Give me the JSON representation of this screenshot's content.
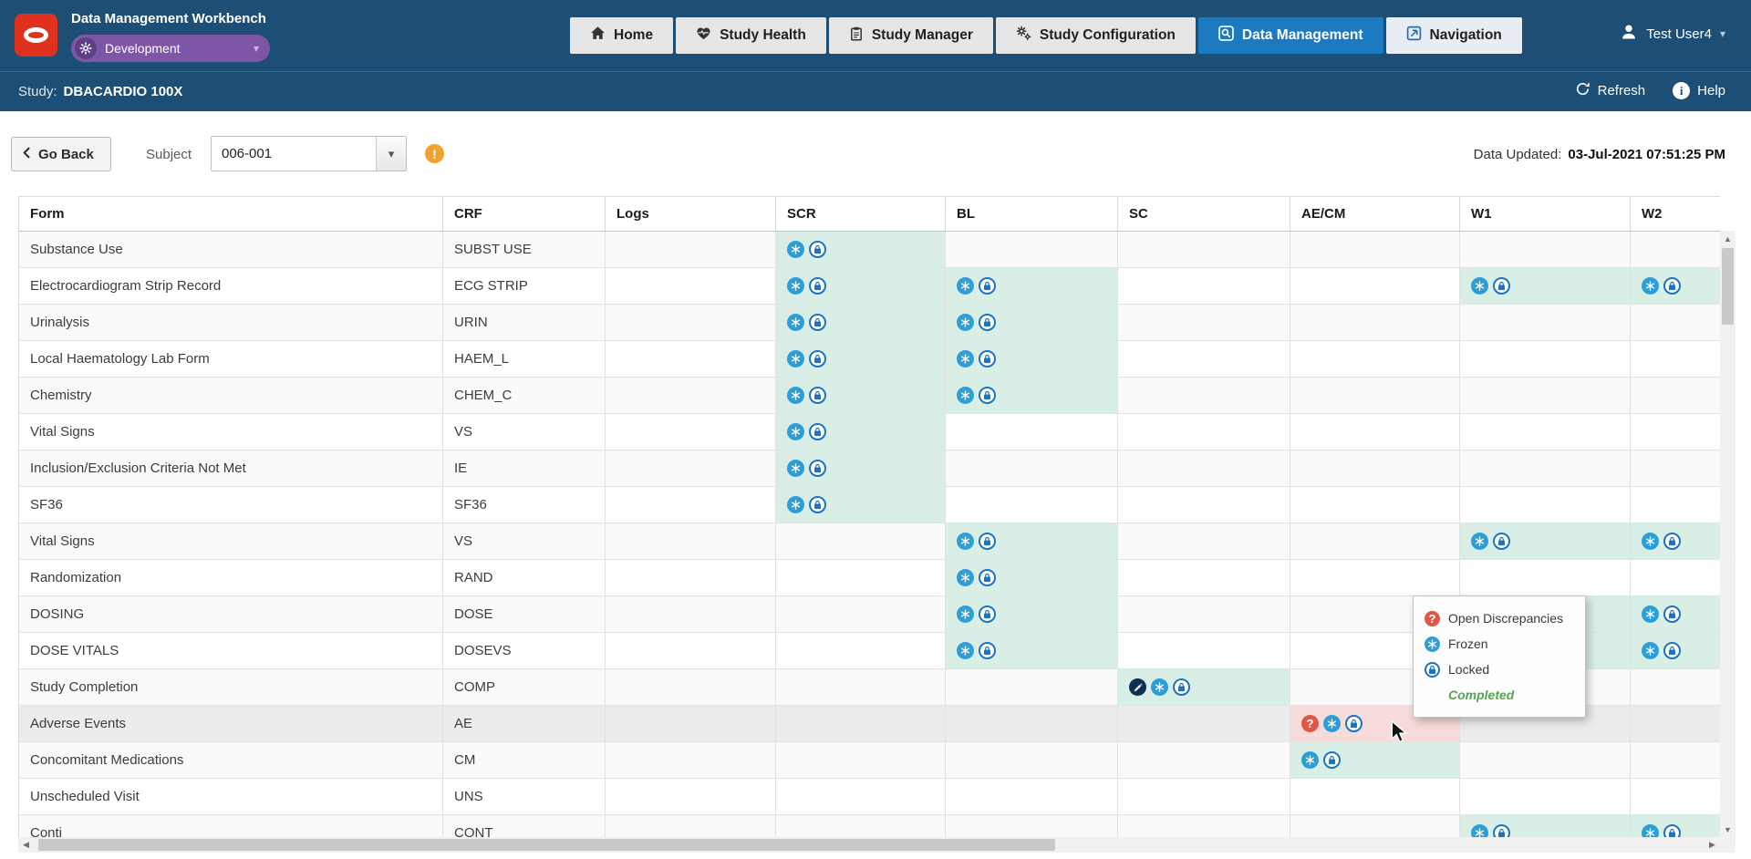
{
  "header": {
    "app_title": "Data Management Workbench",
    "environment": "Development",
    "tabs": [
      {
        "label": "Home",
        "icon": "home",
        "active": false
      },
      {
        "label": "Study Health",
        "icon": "heart-pulse",
        "active": false
      },
      {
        "label": "Study Manager",
        "icon": "clipboard",
        "active": false
      },
      {
        "label": "Study Configuration",
        "icon": "gears",
        "active": false
      },
      {
        "label": "Data Management",
        "icon": "data-search",
        "active": true
      },
      {
        "label": "Navigation",
        "icon": "navigation",
        "active": false,
        "variant": "nav"
      }
    ],
    "user": "Test User4"
  },
  "study_bar": {
    "label": "Study:",
    "study_name": "DBACARDIO 100X",
    "refresh_label": "Refresh",
    "help_label": "Help"
  },
  "toolbar": {
    "go_back_label": "Go Back",
    "subject_label": "Subject",
    "subject_value": "006-001",
    "data_updated_label": "Data Updated:",
    "data_updated_value": "03-Jul-2021 07:51:25 PM"
  },
  "table": {
    "columns": [
      "Form",
      "CRF",
      "Logs",
      "SCR",
      "BL",
      "SC",
      "AE/CM",
      "W1",
      "W2"
    ],
    "visit_columns": [
      "SCR",
      "BL",
      "SC",
      "AE/CM",
      "W1",
      "W2"
    ],
    "rows": [
      {
        "form": "Substance Use",
        "crf": "SUBST USE",
        "status": {
          "SCR": "frozen_locked"
        }
      },
      {
        "form": "Electrocardiogram Strip Record",
        "crf": "ECG STRIP",
        "status": {
          "SCR": "frozen_locked",
          "BL": "frozen_locked",
          "W1": "frozen_locked",
          "W2": "frozen_locked"
        }
      },
      {
        "form": "Urinalysis",
        "crf": "URIN",
        "status": {
          "SCR": "frozen_locked",
          "BL": "frozen_locked"
        }
      },
      {
        "form": "Local Haematology Lab Form",
        "crf": "HAEM_L",
        "status": {
          "SCR": "frozen_locked",
          "BL": "frozen_locked"
        }
      },
      {
        "form": "Chemistry",
        "crf": "CHEM_C",
        "status": {
          "SCR": "frozen_locked",
          "BL": "frozen_locked"
        }
      },
      {
        "form": "Vital Signs",
        "crf": "VS",
        "status": {
          "SCR": "frozen_locked"
        }
      },
      {
        "form": "Inclusion/Exclusion Criteria Not Met",
        "crf": "IE",
        "status": {
          "SCR": "frozen_locked"
        }
      },
      {
        "form": "SF36",
        "crf": "SF36",
        "status": {
          "SCR": "frozen_locked"
        }
      },
      {
        "form": "Vital Signs",
        "crf": "VS",
        "status": {
          "BL": "frozen_locked",
          "W1": "frozen_locked",
          "W2": "frozen_locked"
        }
      },
      {
        "form": "Randomization",
        "crf": "RAND",
        "status": {
          "BL": "frozen_locked"
        }
      },
      {
        "form": "DOSING",
        "crf": "DOSE",
        "status": {
          "BL": "frozen_locked",
          "W1": "frozen_locked",
          "W2": "frozen_locked"
        }
      },
      {
        "form": "DOSE VITALS",
        "crf": "DOSEVS",
        "status": {
          "BL": "frozen_locked",
          "W1": "frozen_locked",
          "W2": "frozen_locked"
        }
      },
      {
        "form": "Study Completion",
        "crf": "COMP",
        "status": {
          "SC": "entry_frozen_locked"
        }
      },
      {
        "form": "Adverse Events",
        "crf": "AE",
        "status": {
          "AE/CM": "disc_frozen_locked"
        },
        "hovered": true
      },
      {
        "form": "Concomitant Medications",
        "crf": "CM",
        "status": {
          "AE/CM": "frozen_locked"
        }
      },
      {
        "form": "Unscheduled Visit",
        "crf": "UNS",
        "status": {}
      },
      {
        "form": "Conti",
        "crf": "CONT",
        "status": {
          "W1": "frozen_locked",
          "W2": "frozen_locked"
        }
      }
    ]
  },
  "legend": {
    "items": [
      {
        "icon": "discrepancy",
        "label": "Open Discrepancies"
      },
      {
        "icon": "frozen",
        "label": "Frozen"
      },
      {
        "icon": "locked",
        "label": "Locked"
      },
      {
        "icon": "completed",
        "label": "Completed"
      }
    ]
  },
  "colors": {
    "header_bg": "#1d4e76",
    "active_tab": "#1b7ac1",
    "environment_pill": "#7d57a5",
    "logo_red": "#e0301e",
    "completed_cell": "#d9efe6",
    "discrepancy_cell": "#f8dbdb",
    "frozen_icon": "#2d9fd8",
    "locked_icon": "#1a74c4",
    "discrepancy_icon": "#e25549",
    "completed_text": "#55a555"
  }
}
